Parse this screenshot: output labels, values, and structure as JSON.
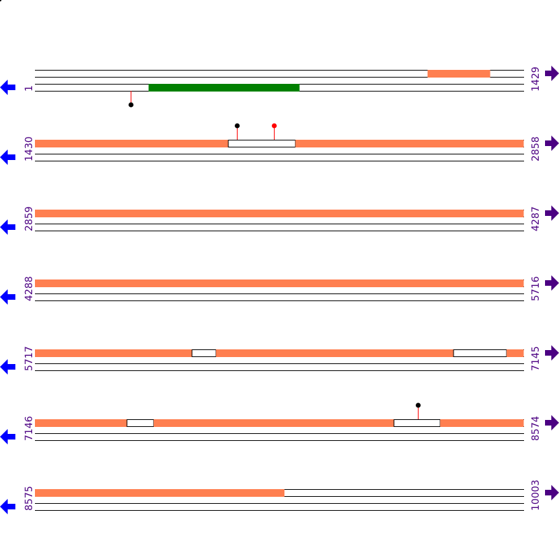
{
  "colors": {
    "orf": "#ff7f50",
    "green_feature": "#008000",
    "line": "#000000",
    "left_arrow": "#0000ff",
    "right_arrow": "#4b0082",
    "label": "#4b0082",
    "marker_black": "#000000",
    "marker_red": "#ff0000",
    "stem": "#ff0000"
  },
  "icons": {
    "left": "arrow-left-icon",
    "right": "arrow-right-icon"
  },
  "rows": [
    {
      "start": "1",
      "end": "1429",
      "features": [
        {
          "frame": 0,
          "from": 1148,
          "to": 1331,
          "kind": "orf"
        },
        {
          "frame": 2,
          "from": 333,
          "to": 774,
          "kind": "green"
        }
      ],
      "markers": [
        {
          "pos": 280,
          "dir": "down",
          "dot": "black"
        }
      ]
    },
    {
      "start": "1430",
      "end": "2858",
      "features": [
        {
          "frame": 0,
          "from": 1430,
          "to": 1995,
          "kind": "orf"
        },
        {
          "frame": 0,
          "from": 1995,
          "to": 2191,
          "kind": "gap"
        },
        {
          "frame": 0,
          "from": 2191,
          "to": 2858,
          "kind": "orf"
        }
      ],
      "markers": [
        {
          "pos": 2020,
          "dir": "up",
          "dot": "black"
        },
        {
          "pos": 2128,
          "dir": "up",
          "dot": "red"
        }
      ]
    },
    {
      "start": "2859",
      "end": "4287",
      "features": [
        {
          "frame": 0,
          "from": 2859,
          "to": 4287,
          "kind": "orf"
        }
      ],
      "markers": []
    },
    {
      "start": "4288",
      "end": "5716",
      "features": [
        {
          "frame": 0,
          "from": 4288,
          "to": 5716,
          "kind": "orf"
        }
      ],
      "markers": []
    },
    {
      "start": "5717",
      "end": "7145",
      "features": [
        {
          "frame": 0,
          "from": 5717,
          "to": 6176,
          "kind": "orf"
        },
        {
          "frame": 0,
          "from": 6176,
          "to": 6246,
          "kind": "gap"
        },
        {
          "frame": 0,
          "from": 6246,
          "to": 6940,
          "kind": "orf"
        },
        {
          "frame": 0,
          "from": 6940,
          "to": 7095,
          "kind": "gap"
        },
        {
          "frame": 0,
          "from": 7095,
          "to": 7145,
          "kind": "orf"
        }
      ],
      "markers": []
    },
    {
      "start": "7146",
      "end": "8574",
      "features": [
        {
          "frame": 0,
          "from": 7146,
          "to": 7415,
          "kind": "orf"
        },
        {
          "frame": 0,
          "from": 7415,
          "to": 7493,
          "kind": "gap"
        },
        {
          "frame": 0,
          "from": 7493,
          "to": 8195,
          "kind": "orf"
        },
        {
          "frame": 0,
          "from": 8195,
          "to": 8330,
          "kind": "gap"
        },
        {
          "frame": 0,
          "from": 8330,
          "to": 8574,
          "kind": "orf"
        }
      ],
      "markers": [
        {
          "pos": 8264,
          "dir": "up",
          "dot": "black"
        }
      ]
    },
    {
      "start": "8575",
      "end": "10003",
      "features": [
        {
          "frame": 0,
          "from": 8575,
          "to": 9304,
          "kind": "orf"
        }
      ],
      "markers": []
    }
  ]
}
